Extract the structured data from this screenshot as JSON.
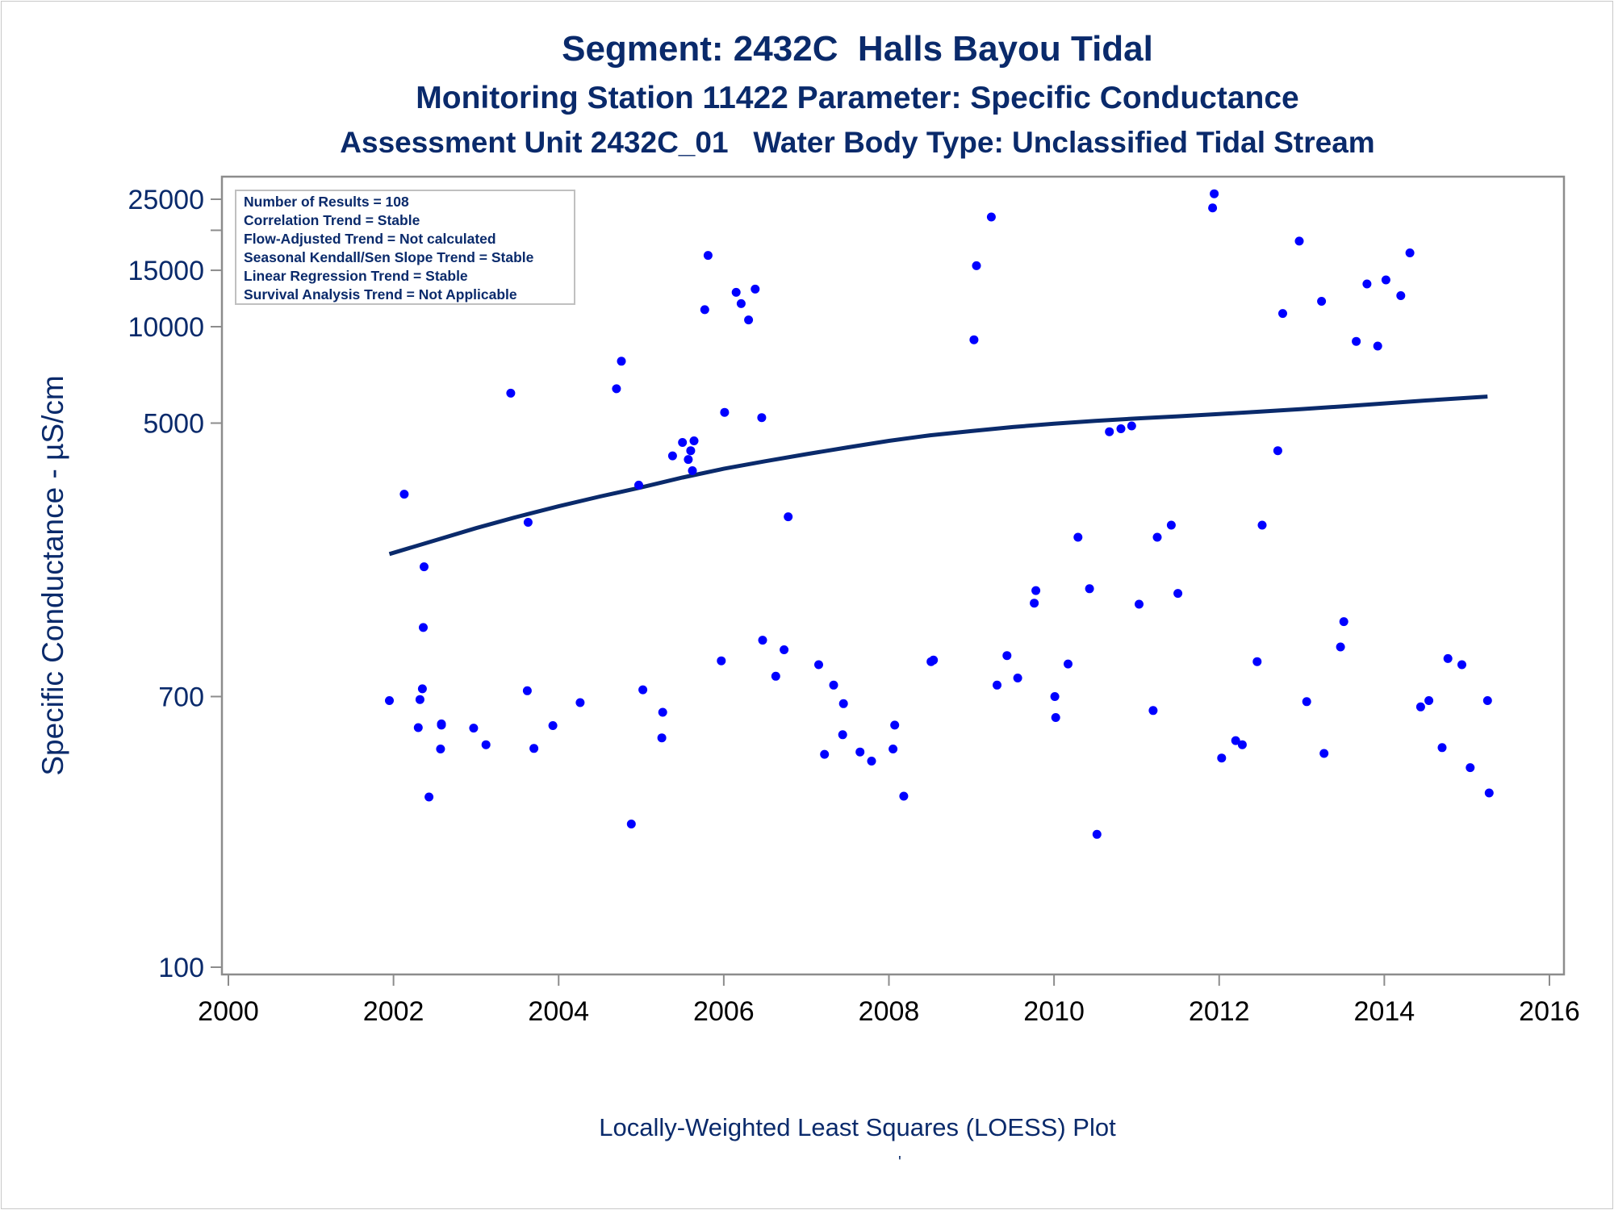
{
  "titles": {
    "line1": "Segment: 2432C  Halls Bayou Tidal",
    "line2": "Monitoring Station 11422 Parameter: Specific Conductance",
    "line3": "Assessment Unit 2432C_01   Water Body Type: Unclassified Tidal Stream"
  },
  "footer": "Locally-Weighted Least Squares (LOESS) Plot",
  "footer_mark": "'",
  "legend_box": [
    "Number of Results = 108",
    "Correlation Trend = Stable",
    "Flow-Adjusted Trend = Not calculated",
    "Seasonal Kendall/Sen Slope Trend = Stable",
    "Linear Regression Trend = Stable",
    "Survival Analysis Trend = Not Applicable"
  ],
  "colors": {
    "points": "#0000ff",
    "line": "#0a2a6b",
    "text": "#0a2a6b",
    "axis": "#8c8c8c"
  },
  "chart_data": {
    "type": "scatter",
    "ylabel": "Specific Conductance -  µS/cm",
    "xlabel": "",
    "yscale": "log",
    "xlim": [
      2000,
      2016
    ],
    "ylim": [
      100,
      25000
    ],
    "xticks": [
      2000,
      2002,
      2004,
      2006,
      2008,
      2010,
      2012,
      2014,
      2016
    ],
    "yticks": [
      100,
      700,
      5000,
      10000,
      15000,
      25000
    ],
    "series": [
      {
        "type": "scatter",
        "points": [
          [
            2001.95,
            680
          ],
          [
            2002.13,
            3000
          ],
          [
            2002.3,
            560
          ],
          [
            2002.32,
            685
          ],
          [
            2002.35,
            740
          ],
          [
            2002.36,
            1150
          ],
          [
            2002.37,
            1780
          ],
          [
            2002.43,
            340
          ],
          [
            2002.57,
            480
          ],
          [
            2002.58,
            570
          ],
          [
            2002.58,
            575
          ],
          [
            2002.97,
            558
          ],
          [
            2003.12,
            495
          ],
          [
            2003.42,
            6200
          ],
          [
            2003.62,
            730
          ],
          [
            2003.63,
            2450
          ],
          [
            2003.7,
            482
          ],
          [
            2003.93,
            568
          ],
          [
            2004.26,
            670
          ],
          [
            2004.7,
            6400
          ],
          [
            2004.76,
            7800
          ],
          [
            2004.88,
            280
          ],
          [
            2004.97,
            3200
          ],
          [
            2005.02,
            735
          ],
          [
            2005.25,
            520
          ],
          [
            2005.26,
            625
          ],
          [
            2005.38,
            3950
          ],
          [
            2005.5,
            4350
          ],
          [
            2005.57,
            3850
          ],
          [
            2005.6,
            4100
          ],
          [
            2005.62,
            3550
          ],
          [
            2005.64,
            4400
          ],
          [
            2005.77,
            11300
          ],
          [
            2005.81,
            16700
          ],
          [
            2005.97,
            905
          ],
          [
            2006.01,
            5400
          ],
          [
            2006.15,
            12800
          ],
          [
            2006.21,
            11800
          ],
          [
            2006.3,
            10500
          ],
          [
            2006.38,
            13100
          ],
          [
            2006.46,
            5200
          ],
          [
            2006.47,
            1050
          ],
          [
            2006.63,
            810
          ],
          [
            2006.73,
            980
          ],
          [
            2006.78,
            2550
          ],
          [
            2007.15,
            880
          ],
          [
            2007.22,
            462
          ],
          [
            2007.33,
            760
          ],
          [
            2007.44,
            532
          ],
          [
            2007.45,
            665
          ],
          [
            2007.65,
            470
          ],
          [
            2007.79,
            440
          ],
          [
            2008.05,
            480
          ],
          [
            2008.07,
            570
          ],
          [
            2008.18,
            342
          ],
          [
            2008.51,
            900
          ],
          [
            2008.54,
            910
          ],
          [
            2009.03,
            9100
          ],
          [
            2009.06,
            15500
          ],
          [
            2009.24,
            22000
          ],
          [
            2009.31,
            760
          ],
          [
            2009.43,
            940
          ],
          [
            2009.56,
            800
          ],
          [
            2009.76,
            1370
          ],
          [
            2009.78,
            1500
          ],
          [
            2010.01,
            700
          ],
          [
            2010.02,
            602
          ],
          [
            2010.17,
            885
          ],
          [
            2010.29,
            2200
          ],
          [
            2010.43,
            1520
          ],
          [
            2010.52,
            260
          ],
          [
            2010.67,
            4700
          ],
          [
            2010.81,
            4800
          ],
          [
            2010.94,
            4900
          ],
          [
            2011.03,
            1360
          ],
          [
            2011.2,
            633
          ],
          [
            2011.25,
            2200
          ],
          [
            2011.42,
            2400
          ],
          [
            2011.5,
            1470
          ],
          [
            2011.92,
            23500
          ],
          [
            2011.94,
            26000
          ],
          [
            2012.03,
            450
          ],
          [
            2012.2,
            510
          ],
          [
            2012.28,
            495
          ],
          [
            2012.46,
            900
          ],
          [
            2012.52,
            2400
          ],
          [
            2012.71,
            4100
          ],
          [
            2012.77,
            11000
          ],
          [
            2012.97,
            18500
          ],
          [
            2013.06,
            675
          ],
          [
            2013.24,
            12000
          ],
          [
            2013.27,
            465
          ],
          [
            2013.47,
            1000
          ],
          [
            2013.51,
            1200
          ],
          [
            2013.66,
            9000
          ],
          [
            2013.79,
            13600
          ],
          [
            2013.92,
            8700
          ],
          [
            2014.02,
            14000
          ],
          [
            2014.2,
            12500
          ],
          [
            2014.31,
            17000
          ],
          [
            2014.44,
            650
          ],
          [
            2014.54,
            680
          ],
          [
            2014.7,
            485
          ],
          [
            2014.77,
            920
          ],
          [
            2014.94,
            880
          ],
          [
            2015.04,
            420
          ],
          [
            2015.25,
            680
          ],
          [
            2015.27,
            350
          ]
        ]
      },
      {
        "type": "line",
        "points": [
          [
            2001.95,
            1950
          ],
          [
            2002.5,
            2150
          ],
          [
            2003.0,
            2350
          ],
          [
            2003.5,
            2550
          ],
          [
            2004.0,
            2750
          ],
          [
            2004.5,
            2950
          ],
          [
            2005.0,
            3150
          ],
          [
            2005.5,
            3380
          ],
          [
            2006.0,
            3600
          ],
          [
            2006.5,
            3800
          ],
          [
            2007.0,
            4000
          ],
          [
            2007.5,
            4200
          ],
          [
            2008.0,
            4400
          ],
          [
            2008.5,
            4580
          ],
          [
            2009.0,
            4720
          ],
          [
            2009.5,
            4860
          ],
          [
            2010.0,
            4980
          ],
          [
            2010.5,
            5080
          ],
          [
            2011.0,
            5170
          ],
          [
            2011.5,
            5250
          ],
          [
            2012.0,
            5340
          ],
          [
            2012.5,
            5430
          ],
          [
            2013.0,
            5530
          ],
          [
            2013.5,
            5640
          ],
          [
            2014.0,
            5760
          ],
          [
            2014.5,
            5880
          ],
          [
            2015.25,
            6050
          ]
        ]
      }
    ]
  }
}
